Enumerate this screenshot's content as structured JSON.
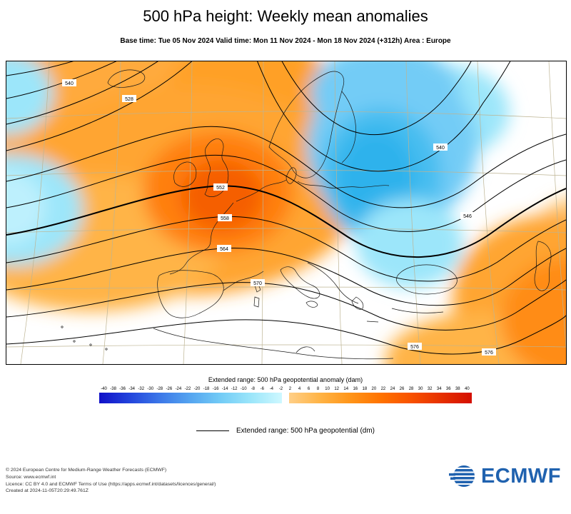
{
  "header": {
    "title": "500 hPa height: Weekly mean anomalies",
    "subtitle": "Base time: Tue 05 Nov 2024 Valid time: Mon 11 Nov 2024 - Mon 18 Nov 2024 (+312h) Area : Europe"
  },
  "map": {
    "contour_labels": [
      "540",
      "528",
      "540",
      "546",
      "552",
      "558",
      "564",
      "570",
      "576",
      "576"
    ]
  },
  "colorbar": {
    "label": "Extended range: 500 hPa geopotential anomaly (dam)",
    "ticks": [
      "-40",
      "-38",
      "-36",
      "-34",
      "-32",
      "-30",
      "-28",
      "-26",
      "-24",
      "-22",
      "-20",
      "-18",
      "-16",
      "-14",
      "-12",
      "-10",
      "-8",
      "-6",
      "-4",
      "-2",
      "2",
      "4",
      "6",
      "8",
      "10",
      "12",
      "14",
      "16",
      "18",
      "20",
      "22",
      "24",
      "26",
      "28",
      "30",
      "32",
      "34",
      "36",
      "38",
      "40"
    ],
    "negative_stops": [
      "#1010c8",
      "#2244dc",
      "#3c78e8",
      "#55a5f0",
      "#73ccf6",
      "#9ce6fa",
      "#cef8ff"
    ],
    "positive_stops": [
      "#ffcf87",
      "#ffb446",
      "#ff9519",
      "#ff7300",
      "#f85200",
      "#e63000",
      "#d40f00"
    ]
  },
  "line_legend": {
    "label": "Extended range: 500 hPa geopotential (dm)"
  },
  "footer": {
    "lines": [
      "© 2024 European Centre for Medium-Range Weather Forecasts (ECMWF)",
      "Source: www.ecmwf.int",
      "Licence: CC BY 4.0 and ECMWF Terms of Use (https://apps.ecmwf.int/datasets/licences/general/)",
      "Created at 2024-11-05T20:29:49.761Z"
    ],
    "logo_text": "ECMWF"
  }
}
